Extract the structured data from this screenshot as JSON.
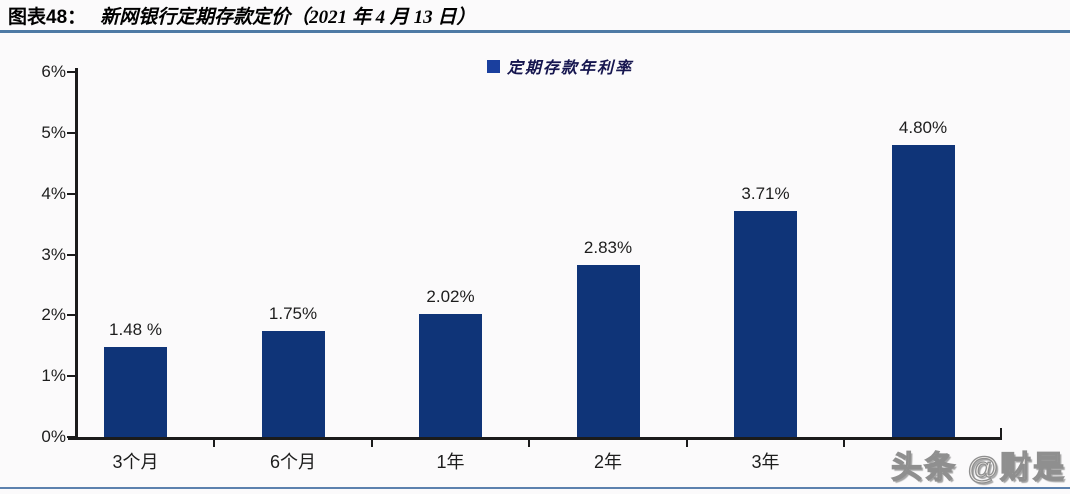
{
  "header": {
    "prefix": "图表48：",
    "title": "新网银行定期存款定价（2021 年 4 月 13 日）"
  },
  "chart_data": {
    "type": "bar",
    "title": "新网银行定期存款定价（2021 年 4 月 13 日）",
    "legend": [
      "定期存款年利率"
    ],
    "legend_position": "top-center",
    "categories": [
      "3个月",
      "6个月",
      "1年",
      "2年",
      "3年",
      ""
    ],
    "values": [
      1.48,
      1.75,
      2.02,
      2.83,
      3.71,
      4.8
    ],
    "value_labels": [
      "1.48 %",
      "1.75%",
      "2.02%",
      "2.83%",
      "3.71%",
      "4.80%"
    ],
    "last_category_obscured_by_watermark": true,
    "xlabel": "",
    "ylabel": "",
    "ylim": [
      0,
      6
    ],
    "ytick_labels": [
      "0%",
      "1%",
      "2%",
      "3%",
      "4%",
      "5%",
      "6%"
    ],
    "grid": false,
    "bar_color": "#0f3478"
  },
  "watermark": {
    "text": "头条 @财是"
  },
  "colors": {
    "background": "#fbfafb",
    "bar": "#0f3478",
    "legend_swatch": "#1a3f9e",
    "title_rule": "#4e7aa5",
    "bottom_rule": "#5c81ae",
    "axis": "#1b1b1b"
  }
}
